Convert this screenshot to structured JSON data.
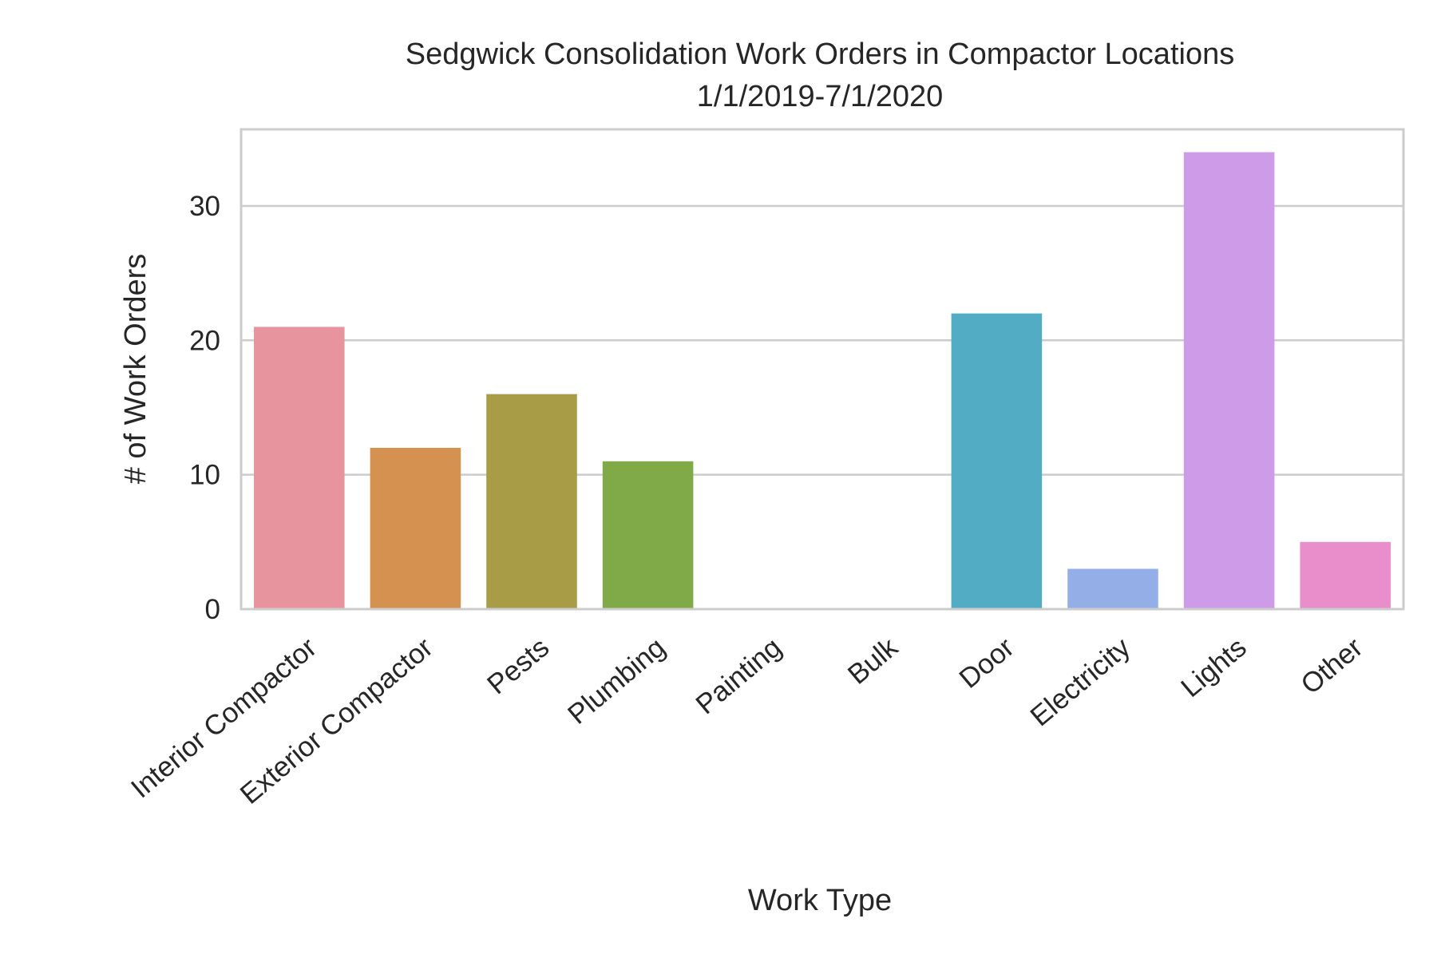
{
  "chart_data": {
    "type": "bar",
    "title": "Sedgwick Consolidation Work Orders in Compactor Locations",
    "subtitle": "1/1/2019-7/1/2020",
    "xlabel": "Work Type",
    "ylabel": "# of Work Orders",
    "categories": [
      "Interior Compactor",
      "Exterior Compactor",
      "Pests",
      "Plumbing",
      "Painting",
      "Bulk",
      "Door",
      "Electricity",
      "Lights",
      "Other"
    ],
    "values": [
      21,
      12,
      16,
      11,
      0,
      0,
      22,
      3,
      34,
      5
    ],
    "colors": [
      "#e8949f",
      "#d4914f",
      "#a89c47",
      "#80a947",
      "#4fad80",
      "#52ad98",
      "#52adc4",
      "#94aee8",
      "#cd9be8",
      "#e98ecb"
    ],
    "ylim": [
      0,
      35.7
    ],
    "yticks": [
      0,
      10,
      20,
      30
    ],
    "grid": true,
    "grid_axis": "y",
    "legend": "none"
  }
}
